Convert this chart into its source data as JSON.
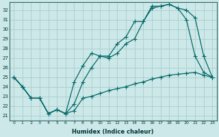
{
  "xlabel": "Humidex (Indice chaleur)",
  "bg_color": "#cce8e8",
  "grid_color": "#aacccc",
  "line_color": "#006666",
  "xlim": [
    -0.5,
    23.5
  ],
  "ylim": [
    20.5,
    32.8
  ],
  "yticks": [
    21,
    22,
    23,
    24,
    25,
    26,
    27,
    28,
    29,
    30,
    31,
    32
  ],
  "xticks": [
    0,
    1,
    2,
    3,
    4,
    5,
    6,
    7,
    8,
    9,
    10,
    11,
    12,
    13,
    14,
    15,
    16,
    17,
    18,
    19,
    20,
    21,
    22,
    23
  ],
  "line1_x": [
    0,
    1,
    2,
    3,
    4,
    5,
    6,
    7,
    8,
    9,
    10,
    11,
    12,
    13,
    14,
    15,
    16,
    17,
    18,
    19,
    20,
    21,
    22,
    23
  ],
  "line1_y": [
    25.0,
    24.0,
    22.8,
    22.8,
    21.2,
    21.6,
    21.2,
    22.2,
    24.5,
    26.0,
    27.2,
    27.0,
    27.5,
    28.5,
    29.0,
    30.8,
    32.2,
    32.4,
    32.6,
    32.2,
    32.0,
    31.2,
    27.2,
    25.0
  ],
  "line2_x": [
    0,
    1,
    2,
    3,
    4,
    5,
    6,
    7,
    8,
    9,
    10,
    11,
    12,
    13,
    14,
    15,
    16,
    17,
    18,
    19,
    20,
    21,
    22,
    23
  ],
  "line2_y": [
    25.0,
    24.0,
    22.8,
    22.8,
    21.2,
    21.6,
    21.2,
    24.5,
    26.2,
    27.5,
    27.2,
    27.2,
    28.5,
    29.2,
    30.8,
    30.8,
    32.4,
    32.4,
    32.6,
    32.2,
    31.0,
    27.2,
    25.5,
    25.0
  ],
  "line3_x": [
    0,
    1,
    2,
    3,
    4,
    5,
    6,
    7,
    8,
    9,
    10,
    11,
    12,
    13,
    14,
    15,
    16,
    17,
    18,
    19,
    20,
    21,
    22,
    23
  ],
  "line3_y": [
    25.0,
    24.0,
    22.8,
    22.8,
    21.2,
    21.6,
    21.2,
    21.5,
    22.8,
    23.0,
    23.3,
    23.6,
    23.8,
    24.0,
    24.3,
    24.5,
    24.8,
    25.0,
    25.2,
    25.3,
    25.4,
    25.5,
    25.2,
    25.0
  ]
}
